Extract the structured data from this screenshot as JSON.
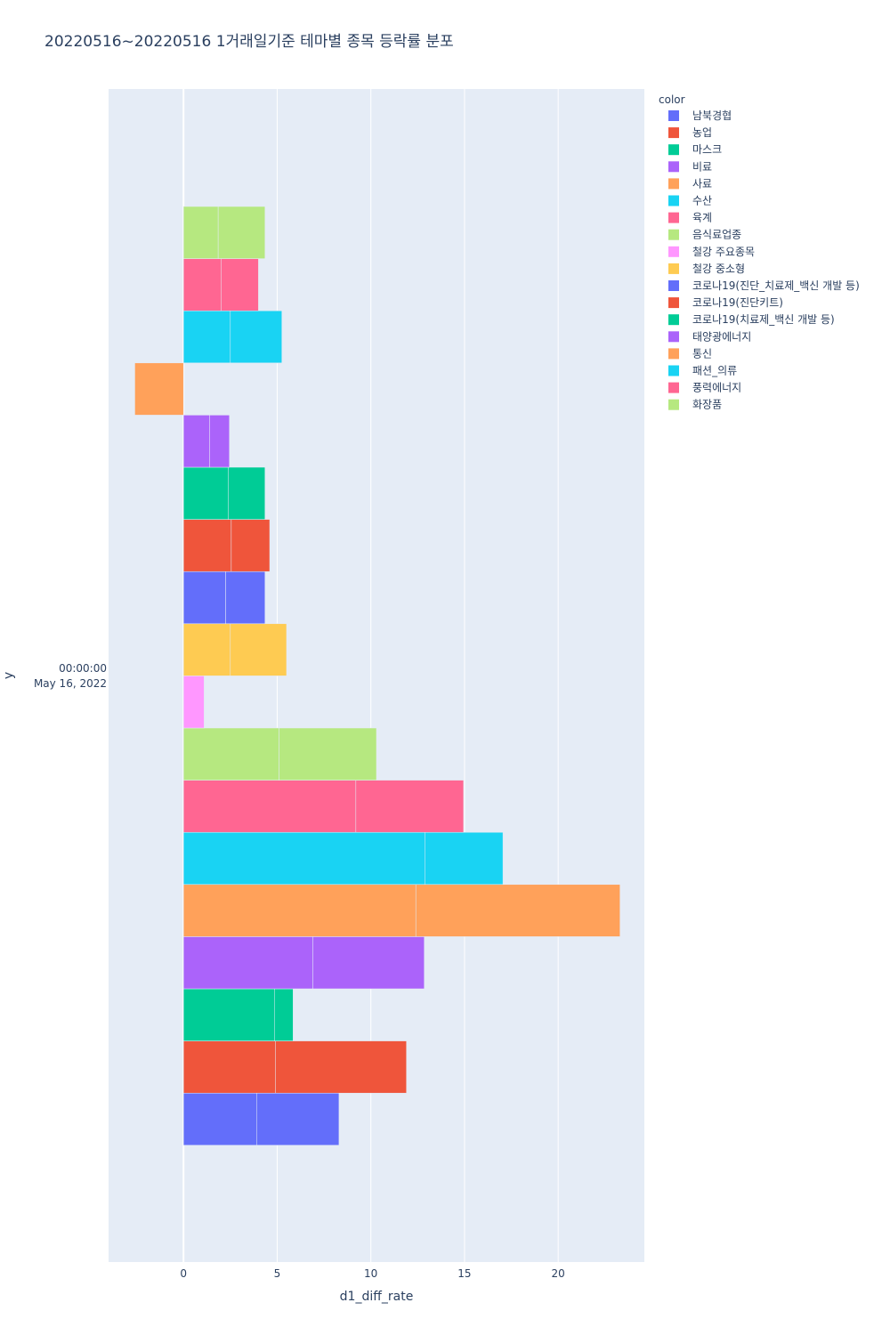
{
  "chart_data": {
    "type": "bar",
    "orientation": "horizontal",
    "barmode": "relative",
    "title": "20220516~20220516 1거래일기준 테마별 종목 등락률 분포",
    "xlabel": "d1_diff_rate",
    "ylabel": "y",
    "y_category_label": [
      "00:00:00",
      "May 16, 2022"
    ],
    "xlim": [
      -4,
      24.6
    ],
    "x_ticks": [
      0,
      5,
      10,
      15,
      20
    ],
    "grid": true,
    "legend_title": "color",
    "legend_position": "right",
    "series": [
      {
        "name": "남북경협",
        "color": "#636efa",
        "segments": [
          3.9,
          4.4
        ]
      },
      {
        "name": "농업",
        "color": "#EF553B",
        "segments": [
          4.9,
          7.0
        ]
      },
      {
        "name": "마스크",
        "color": "#00cc96",
        "segments": [
          4.85,
          1.0
        ]
      },
      {
        "name": "비료",
        "color": "#ab63fa",
        "segments": [
          6.9,
          5.95
        ]
      },
      {
        "name": "사료",
        "color": "#FFA15A",
        "segments": [
          12.4,
          10.9
        ]
      },
      {
        "name": "수산",
        "color": "#19d3f3",
        "segments": [
          12.9,
          4.15
        ]
      },
      {
        "name": "육계",
        "color": "#FF6692",
        "segments": [
          9.2,
          5.75
        ]
      },
      {
        "name": "음식료업종",
        "color": "#B6E880",
        "segments": [
          5.1,
          5.2
        ]
      },
      {
        "name": "철강 주요종목",
        "color": "#FF97FF",
        "segments": [
          1.1
        ]
      },
      {
        "name": "철강 중소형",
        "color": "#FECB52",
        "segments": [
          2.5,
          3.0
        ]
      },
      {
        "name": "코로나19(진단_치료제_백신 개발 등)",
        "color": "#636efa",
        "segments": [
          2.25,
          2.1
        ]
      },
      {
        "name": "코로나19(진단키트)",
        "color": "#EF553B",
        "segments": [
          2.55,
          2.05
        ]
      },
      {
        "name": "코로나19(치료제_백신 개발 등)",
        "color": "#00cc96",
        "segments": [
          2.4,
          1.95
        ]
      },
      {
        "name": "태양광에너지",
        "color": "#ab63fa",
        "segments": [
          1.4,
          1.05
        ]
      },
      {
        "name": "통신",
        "color": "#FFA15A",
        "segments": [
          -2.6
        ]
      },
      {
        "name": "패션_의류",
        "color": "#19d3f3",
        "segments": [
          2.5,
          2.75
        ]
      },
      {
        "name": "풍력에너지",
        "color": "#FF6692",
        "segments": [
          2.0,
          2.0
        ]
      },
      {
        "name": "화장품",
        "color": "#B6E880",
        "segments": [
          1.85,
          2.5
        ]
      }
    ]
  }
}
